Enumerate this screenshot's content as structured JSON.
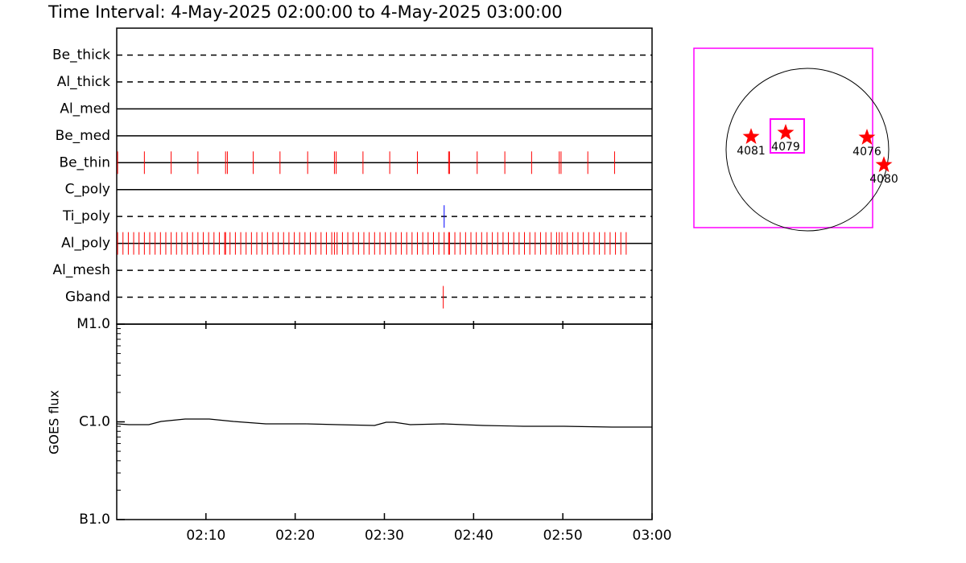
{
  "chart_data": [
    {
      "type": "timeline",
      "title": "Time Interval:  4-May-2025 02:00:00 to  4-May-2025 03:00:00",
      "xlim": [
        0,
        60
      ],
      "categories": [
        "Be_thick",
        "Al_thick",
        "Al_med",
        "Be_med",
        "Be_thin",
        "C_poly",
        "Ti_poly",
        "Al_poly",
        "Al_mesh",
        "Gband"
      ],
      "line_styles": [
        "dashed",
        "dashed",
        "solid",
        "solid",
        "solid",
        "solid",
        "dashed",
        "solid",
        "dashed",
        "dashed"
      ],
      "colors": [
        "#ff0000",
        "#ff0000",
        "#ff0000",
        "#ff0000",
        "#ff0000",
        "#ff0000",
        "#0000ff",
        "#ff0000",
        "#ff0000",
        "#ff0000"
      ],
      "events": [
        [],
        [],
        [],
        [],
        [
          0.1,
          3.1,
          6.1,
          9.1,
          12.2,
          12.4,
          15.3,
          18.3,
          21.4,
          24.4,
          24.6,
          27.6,
          30.6,
          33.7,
          37.2,
          37.3,
          40.4,
          43.5,
          46.5,
          49.6,
          49.8,
          52.8,
          55.8
        ],
        [],
        [
          36.7
        ],
        [
          0.1,
          0.7,
          1.3,
          1.9,
          2.5,
          3.1,
          3.7,
          4.3,
          4.9,
          5.5,
          6.1,
          6.7,
          7.3,
          7.9,
          8.5,
          9.1,
          9.7,
          10.3,
          10.9,
          11.5,
          12.1,
          12.2,
          12.7,
          13.3,
          13.9,
          14.5,
          15.1,
          15.7,
          16.3,
          16.9,
          17.5,
          18.1,
          18.7,
          19.3,
          19.9,
          20.5,
          21.1,
          21.7,
          22.3,
          22.9,
          23.5,
          24.1,
          24.4,
          24.7,
          25.3,
          25.9,
          26.5,
          27.1,
          27.7,
          28.3,
          28.9,
          29.5,
          30.1,
          30.7,
          31.3,
          31.9,
          32.5,
          33.1,
          33.7,
          34.3,
          34.9,
          35.5,
          36.1,
          36.7,
          37.2,
          37.3,
          37.9,
          38.5,
          39.1,
          39.7,
          40.3,
          40.9,
          41.5,
          42.1,
          42.7,
          43.3,
          43.9,
          44.5,
          45.1,
          45.7,
          46.3,
          46.9,
          47.5,
          48.1,
          48.7,
          49.3,
          49.6,
          49.9,
          50.5,
          51.1,
          51.7,
          52.3,
          52.9,
          53.5,
          54.1,
          54.7,
          55.3,
          55.9,
          56.5,
          57.1
        ],
        [],
        [
          36.6
        ]
      ]
    },
    {
      "type": "line",
      "y_label": "GOES flux",
      "log_scale": true,
      "color": "#000000",
      "xlim": [
        0,
        60
      ],
      "xticks": [
        {
          "value": 10,
          "label": "02:10"
        },
        {
          "value": 20,
          "label": "02:20"
        },
        {
          "value": 30,
          "label": "02:30"
        },
        {
          "value": 40,
          "label": "02:40"
        },
        {
          "value": 50,
          "label": "02:50"
        },
        {
          "value": 60,
          "label": "03:00"
        }
      ],
      "ylim": [
        1e-07,
        1e-05
      ],
      "yticks": [
        {
          "value": 1e-07,
          "label": "B1.0"
        },
        {
          "value": 1e-06,
          "label": "C1.0"
        },
        {
          "value": 1e-05,
          "label": "M1.0"
        }
      ],
      "x": [
        0,
        1.35,
        3.6,
        4.96,
        7.67,
        10.38,
        13.09,
        16.7,
        21.2,
        24.8,
        28.9,
        30.2,
        31.1,
        32.9,
        36.6,
        41.1,
        45.6,
        50.1,
        55.5,
        60
      ],
      "values": [
        9.54e-07,
        9.36e-07,
        9.36e-07,
        1.01e-06,
        1.068e-06,
        1.068e-06,
        1.01e-06,
        9.54e-07,
        9.54e-07,
        9.36e-07,
        9.18e-07,
        9.91e-07,
        9.91e-07,
        9.36e-07,
        9.54e-07,
        9.18e-07,
        9.01e-07,
        9.01e-07,
        8.84e-07,
        8.84e-07
      ]
    },
    {
      "type": "map",
      "xlim": [
        -1326,
        762
      ],
      "ylim": [
        -912,
        1185
      ],
      "sun_radius": 950,
      "box_color": "#ff00ff",
      "color": "#ff0000",
      "fov_box": {
        "x": [
          -433,
          -38
        ],
        "y": [
          -38,
          357
        ]
      },
      "labels": [
        "4081",
        "4079",
        "4076",
        "4080"
      ],
      "x": [
        -658,
        -254,
        696,
        894
      ],
      "values": [
        150,
        198,
        141,
        -179
      ]
    }
  ]
}
